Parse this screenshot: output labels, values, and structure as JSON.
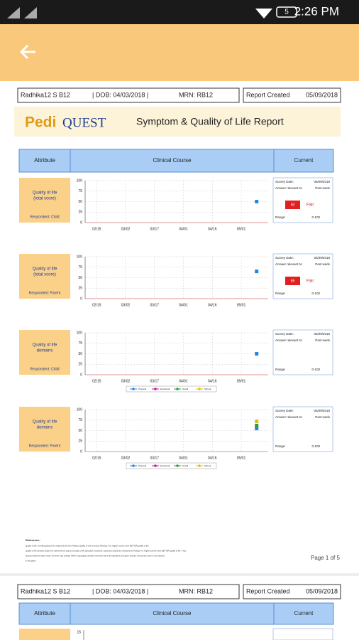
{
  "status_bar": {
    "time": "2:26 PM",
    "battery": "5"
  },
  "report": {
    "patient": "Radhika12 S B12",
    "dob": "| DOB: 04/03/2018 |",
    "mrn": "MRN: RB12",
    "created_label": "Report Created",
    "created_date": "05/09/2018"
  },
  "brand": {
    "pedi": "Pedi",
    "quest": "QUEST",
    "title": "Symptom & Quality of Life Report"
  },
  "table_header": {
    "attribute": "Attribute",
    "course": "Clinical Course",
    "current": "Current"
  },
  "panels": [
    {
      "attribute": [
        "Quality of life",
        "(total score)"
      ],
      "respondent": "Respondent: Child",
      "current": {
        "date_label": "Survey Date:",
        "date": "05/09/2018",
        "relevant_label": "Answer relevant to:",
        "relevant": "Past week",
        "score": "50",
        "level": "Fair",
        "range_label": "Range:",
        "range": "0-100"
      },
      "chart": {
        "type": "scatter",
        "ylim": [
          0,
          100
        ],
        "yticks": [
          0,
          25,
          50,
          75,
          100
        ],
        "xlim": [
          40,
          135
        ],
        "xticks": [
          {
            "value": 46,
            "label": "02/15"
          },
          {
            "value": 61,
            "label": "03/02"
          },
          {
            "value": 76,
            "label": "03/17"
          },
          {
            "value": 91,
            "label": "04/01"
          },
          {
            "value": 106,
            "label": "04/16"
          },
          {
            "value": 121,
            "label": "05/01"
          }
        ],
        "series": [
          {
            "color": "#1e88e5",
            "x": [
              129
            ],
            "values": [
              50
            ]
          }
        ]
      }
    },
    {
      "attribute": [
        "Quality of life",
        "(total score)"
      ],
      "respondent": "Respondent: Parent",
      "current": {
        "date_label": "Survey Date:",
        "date": "05/09/2018",
        "relevant_label": "Answer relevant to:",
        "relevant": "Past week",
        "score": "65",
        "level": "Fair",
        "range_label": "Range:",
        "range": "0-100"
      },
      "chart": {
        "type": "scatter",
        "ylim": [
          0,
          100
        ],
        "yticks": [
          0,
          25,
          50,
          75,
          100
        ],
        "xlim": [
          40,
          135
        ],
        "xticks": [
          {
            "value": 46,
            "label": "02/15"
          },
          {
            "value": 61,
            "label": "03/02"
          },
          {
            "value": 76,
            "label": "03/17"
          },
          {
            "value": 91,
            "label": "04/01"
          },
          {
            "value": 106,
            "label": "04/16"
          },
          {
            "value": 121,
            "label": "05/01"
          }
        ],
        "series": [
          {
            "color": "#1e88e5",
            "x": [
              129
            ],
            "values": [
              65
            ]
          }
        ]
      }
    },
    {
      "attribute": [
        "Quality of life",
        "domains"
      ],
      "respondent": "Respondent: Child",
      "current": {
        "date_label": "Survey Date:",
        "date": "05/09/2018",
        "relevant_label": "Answer relevant to:",
        "relevant": "Past week",
        "range_label": "Range:",
        "range": "0-100"
      },
      "chart": {
        "type": "scatter",
        "ylim": [
          0,
          100
        ],
        "yticks": [
          0,
          25,
          50,
          75,
          100
        ],
        "xlim": [
          40,
          135
        ],
        "xticks": [
          {
            "value": 46,
            "label": "02/15"
          },
          {
            "value": 61,
            "label": "03/02"
          },
          {
            "value": 76,
            "label": "03/17"
          },
          {
            "value": 91,
            "label": "04/01"
          },
          {
            "value": 106,
            "label": "04/16"
          },
          {
            "value": 121,
            "label": "05/01"
          }
        ],
        "series": [
          {
            "name": "Physical",
            "color": "#1e88e5",
            "x": [
              129
            ],
            "values": [
              50
            ]
          },
          {
            "name": "Emotional",
            "color": "#c2189a",
            "x": [],
            "values": []
          },
          {
            "name": "Social",
            "color": "#2e9d3a",
            "x": [],
            "values": []
          },
          {
            "name": "School",
            "color": "#d9c21a",
            "x": [],
            "values": []
          }
        ]
      }
    },
    {
      "attribute": [
        "Quality of life",
        "domains"
      ],
      "respondent": "Respondent: Parent",
      "current": {
        "date_label": "Survey Date:",
        "date": "05/09/2018",
        "relevant_label": "Answer relevant to:",
        "relevant": "Past week",
        "range_label": "Range:",
        "range": "0-100"
      },
      "chart": {
        "type": "scatter",
        "ylim": [
          0,
          100
        ],
        "yticks": [
          0,
          25,
          50,
          75,
          100
        ],
        "xlim": [
          40,
          135
        ],
        "xticks": [
          {
            "value": 46,
            "label": "02/15"
          },
          {
            "value": 61,
            "label": "03/02"
          },
          {
            "value": 76,
            "label": "03/17"
          },
          {
            "value": 91,
            "label": "04/01"
          },
          {
            "value": 106,
            "label": "04/16"
          },
          {
            "value": 121,
            "label": "05/01"
          }
        ],
        "series": [
          {
            "name": "Physical",
            "color": "#1e88e5",
            "x": [
              129
            ],
            "values": [
              55
            ]
          },
          {
            "name": "Emotional",
            "color": "#c2189a",
            "x": [],
            "values": []
          },
          {
            "name": "Social",
            "color": "#2e9d3a",
            "x": [
              129
            ],
            "values": [
              62
            ]
          },
          {
            "name": "School",
            "color": "#d9c21a",
            "x": [
              129
            ],
            "values": [
              72
            ]
          }
        ]
      }
    }
  ],
  "references": {
    "heading": "Reference:",
    "lines": [
      "Quality of life: Overall quality of life measured with the Pediatric Quality of Life Inventory (PedsQL 4.0). Higher scores mean BETTER quality of life.",
      "Quality of life domains: Each line represents an aspect of quality of life (physical, emotional, social and school) as measured by PedsQL 4.0. Higher scores mean BETTER quality of life. If two",
      "domains have the same score, the lines may overlap. When a participant answers less than half of the questions of a given domain, the domain score is not reported",
      "in the graph."
    ]
  },
  "page": {
    "label": "Page 1 of 5"
  },
  "next_page": {
    "first_tick": "15"
  }
}
